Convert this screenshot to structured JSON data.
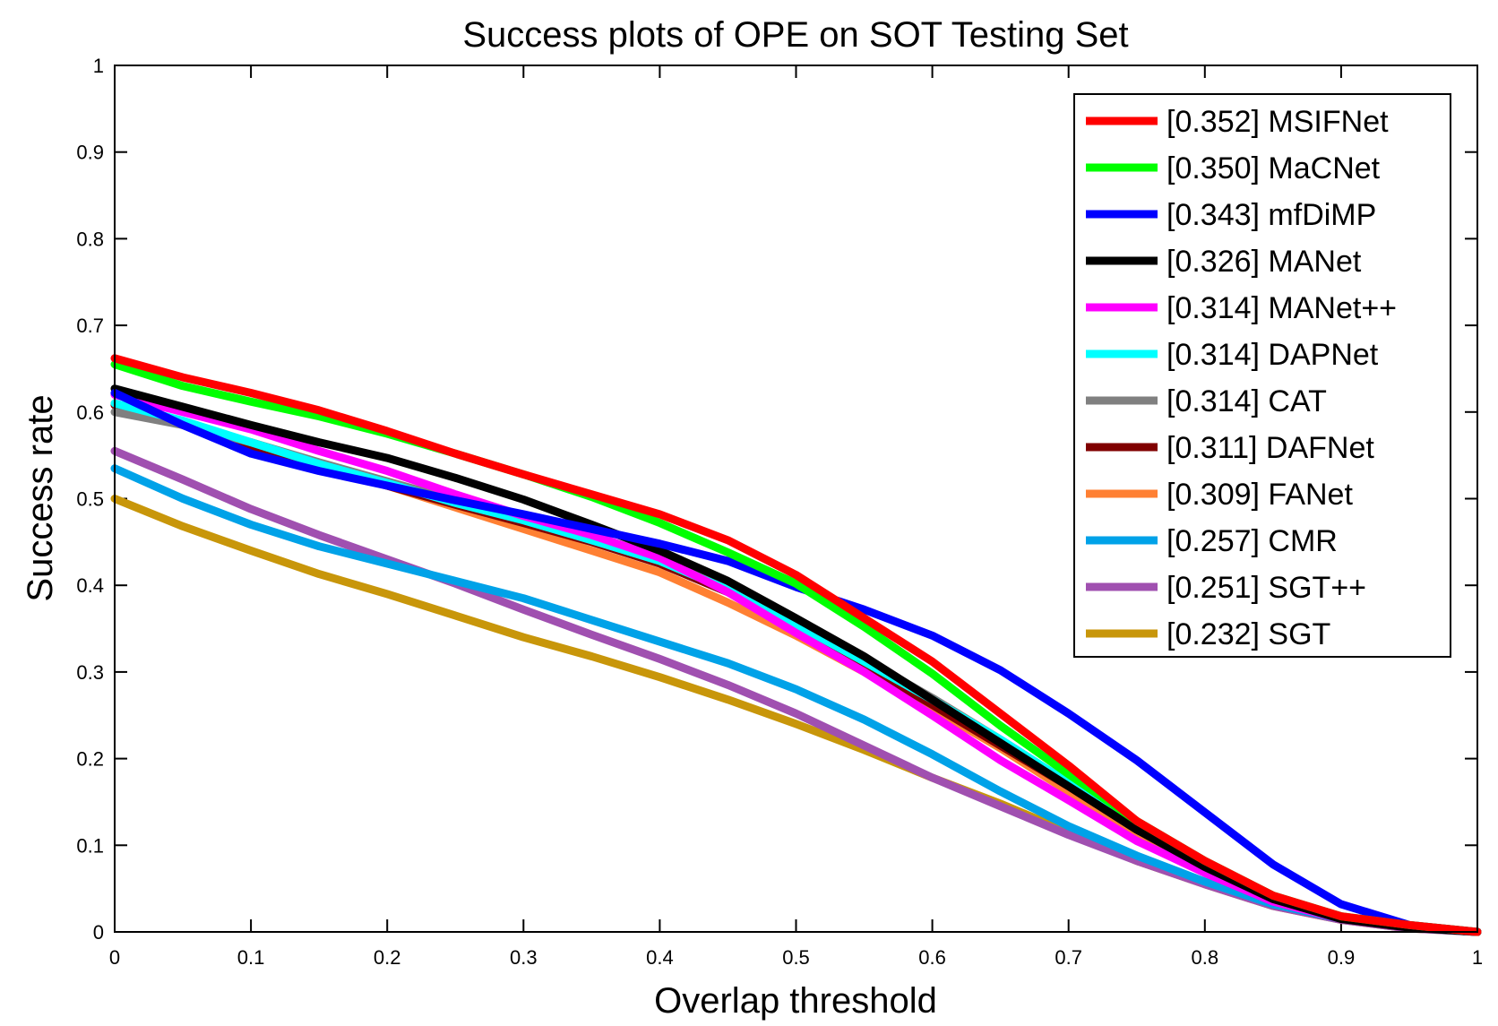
{
  "chart_data": {
    "type": "line",
    "title": "Success plots of OPE on SOT Testing Set",
    "xlabel": "Overlap threshold",
    "ylabel": "Success rate",
    "xlim": [
      0,
      1
    ],
    "ylim": [
      0,
      1
    ],
    "xticks": [
      "0",
      "0.1",
      "0.2",
      "0.3",
      "0.4",
      "0.5",
      "0.6",
      "0.7",
      "0.8",
      "0.9",
      "1"
    ],
    "yticks": [
      "0",
      "0.1",
      "0.2",
      "0.3",
      "0.4",
      "0.5",
      "0.6",
      "0.7",
      "0.8",
      "0.9",
      "1"
    ],
    "grid": false,
    "legend_position": "top-right",
    "x": [
      0,
      0.05,
      0.1,
      0.15,
      0.2,
      0.25,
      0.3,
      0.35,
      0.4,
      0.45,
      0.5,
      0.55,
      0.6,
      0.65,
      0.7,
      0.75,
      0.8,
      0.85,
      0.9,
      0.95,
      1.0
    ],
    "series": [
      {
        "name": "[0.352] MSIFNet",
        "color": "#ff0000",
        "values": [
          0.662,
          0.64,
          0.622,
          0.602,
          0.578,
          0.552,
          0.528,
          0.505,
          0.482,
          0.452,
          0.412,
          0.362,
          0.312,
          0.252,
          0.192,
          0.128,
          0.082,
          0.042,
          0.018,
          0.008,
          0.0
        ]
      },
      {
        "name": "[0.350] MaCNet",
        "color": "#00ff00",
        "values": [
          0.655,
          0.63,
          0.612,
          0.595,
          0.575,
          0.552,
          0.528,
          0.502,
          0.472,
          0.438,
          0.402,
          0.352,
          0.298,
          0.238,
          0.182,
          0.128,
          0.082,
          0.042,
          0.018,
          0.008,
          0.0
        ]
      },
      {
        "name": "[0.343] mfDiMP",
        "color": "#0000ff",
        "values": [
          0.622,
          0.585,
          0.552,
          0.532,
          0.515,
          0.498,
          0.482,
          0.465,
          0.448,
          0.428,
          0.398,
          0.372,
          0.342,
          0.302,
          0.252,
          0.198,
          0.138,
          0.078,
          0.032,
          0.008,
          0.0
        ]
      },
      {
        "name": "[0.326] MANet",
        "color": "#000000",
        "values": [
          0.627,
          0.606,
          0.585,
          0.565,
          0.547,
          0.524,
          0.499,
          0.47,
          0.44,
          0.405,
          0.362,
          0.318,
          0.268,
          0.218,
          0.168,
          0.118,
          0.075,
          0.038,
          0.015,
          0.005,
          0.0
        ]
      },
      {
        "name": "[0.314] MANet++",
        "color": "#ff00ff",
        "values": [
          0.62,
          0.6,
          0.58,
          0.555,
          0.532,
          0.505,
          0.48,
          0.458,
          0.432,
          0.392,
          0.345,
          0.3,
          0.25,
          0.198,
          0.152,
          0.105,
          0.068,
          0.035,
          0.015,
          0.005,
          0.0
        ]
      },
      {
        "name": "[0.314] DAPNet",
        "color": "#00ffff",
        "values": [
          0.61,
          0.59,
          0.565,
          0.54,
          0.518,
          0.495,
          0.475,
          0.452,
          0.428,
          0.395,
          0.355,
          0.312,
          0.268,
          0.222,
          0.172,
          0.122,
          0.078,
          0.04,
          0.016,
          0.005,
          0.0
        ]
      },
      {
        "name": "[0.314] CAT",
        "color": "#808080",
        "values": [
          0.6,
          0.585,
          0.565,
          0.542,
          0.52,
          0.498,
          0.477,
          0.455,
          0.43,
          0.398,
          0.358,
          0.315,
          0.27,
          0.222,
          0.172,
          0.122,
          0.078,
          0.04,
          0.016,
          0.005,
          0.0
        ]
      },
      {
        "name": "[0.311] DAFNet",
        "color": "#800000",
        "values": [
          0.608,
          0.585,
          0.56,
          0.537,
          0.515,
          0.493,
          0.472,
          0.45,
          0.425,
          0.392,
          0.352,
          0.308,
          0.262,
          0.215,
          0.168,
          0.118,
          0.075,
          0.038,
          0.015,
          0.005,
          0.0
        ]
      },
      {
        "name": "[0.309] FANet",
        "color": "#ff8033",
        "values": [
          0.61,
          0.585,
          0.565,
          0.54,
          0.515,
          0.49,
          0.465,
          0.44,
          0.415,
          0.38,
          0.342,
          0.3,
          0.258,
          0.212,
          0.162,
          0.115,
          0.075,
          0.038,
          0.015,
          0.005,
          0.0
        ]
      },
      {
        "name": "[0.257] CMR",
        "color": "#00a2e8",
        "values": [
          0.535,
          0.5,
          0.47,
          0.445,
          0.425,
          0.405,
          0.385,
          0.36,
          0.335,
          0.31,
          0.28,
          0.245,
          0.205,
          0.162,
          0.122,
          0.088,
          0.058,
          0.032,
          0.015,
          0.005,
          0.0
        ]
      },
      {
        "name": "[0.251] SGT++",
        "color": "#a050b0",
        "values": [
          0.555,
          0.522,
          0.488,
          0.458,
          0.43,
          0.402,
          0.372,
          0.343,
          0.315,
          0.285,
          0.252,
          0.215,
          0.178,
          0.145,
          0.112,
          0.082,
          0.055,
          0.03,
          0.014,
          0.004,
          0.0
        ]
      },
      {
        "name": "[0.232] SGT",
        "color": "#c8960a",
        "values": [
          0.5,
          0.468,
          0.44,
          0.413,
          0.39,
          0.365,
          0.34,
          0.318,
          0.294,
          0.268,
          0.24,
          0.21,
          0.178,
          0.148,
          0.115,
          0.082,
          0.055,
          0.03,
          0.014,
          0.004,
          0.0
        ]
      }
    ]
  }
}
